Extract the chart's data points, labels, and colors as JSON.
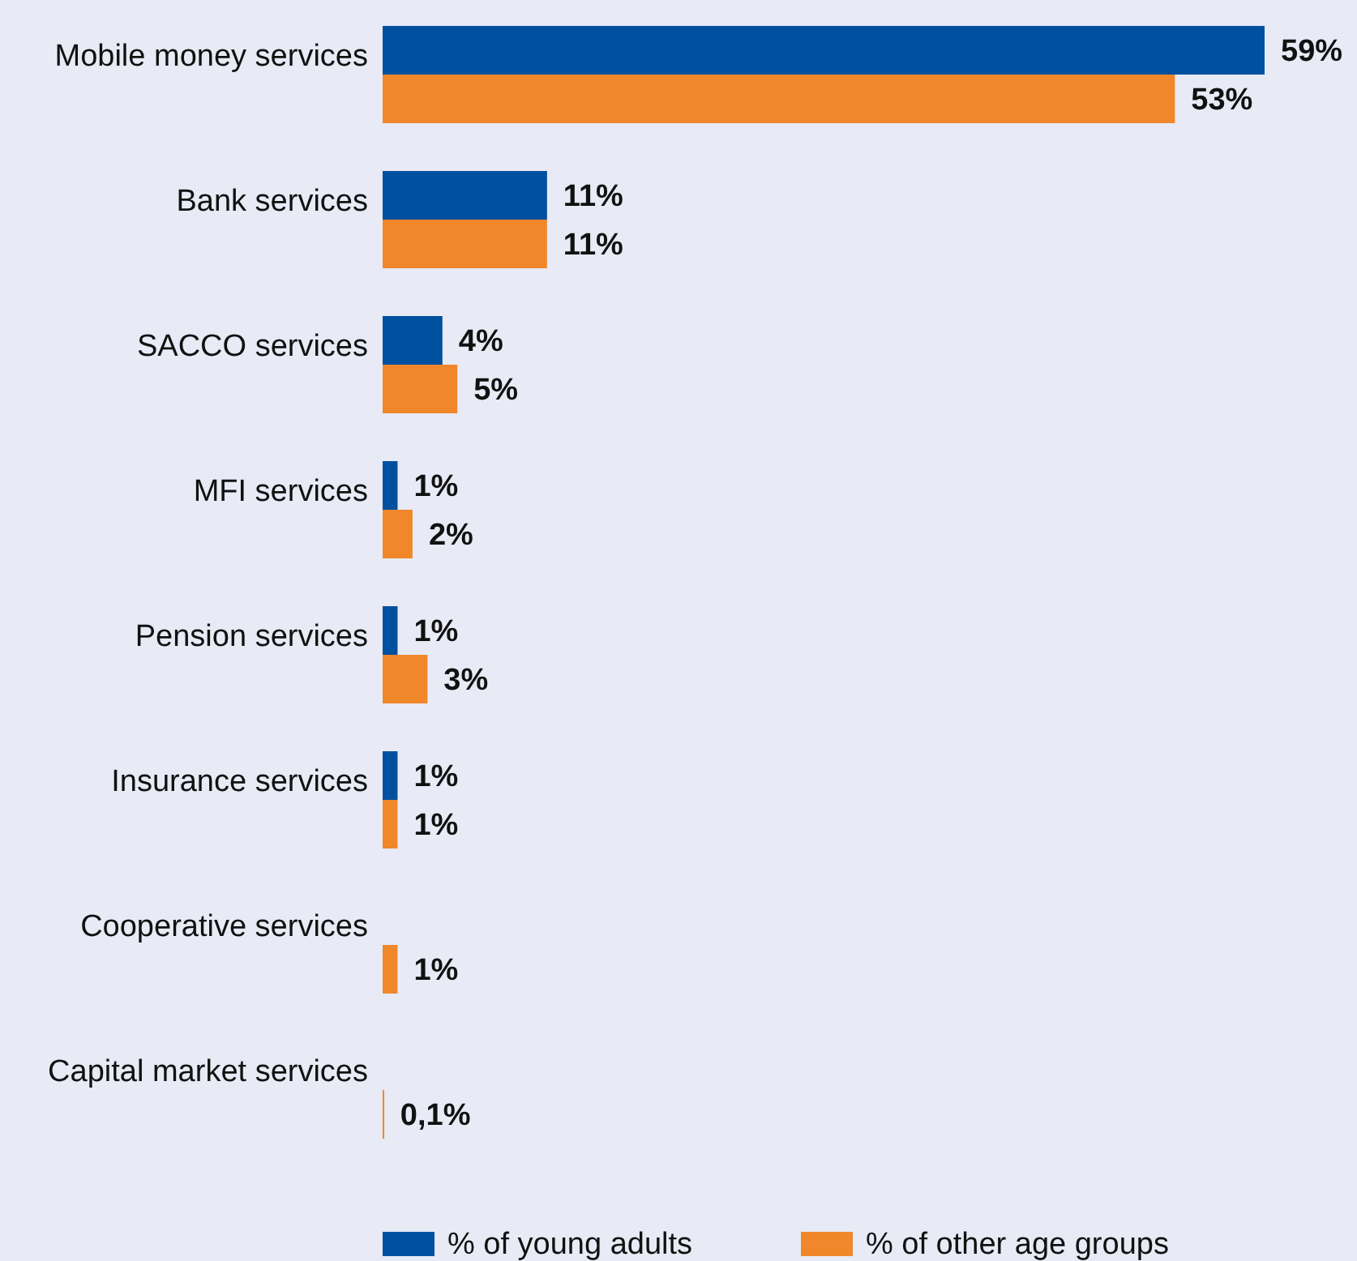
{
  "chart_data": {
    "type": "bar",
    "orientation": "horizontal",
    "categories": [
      "Mobile money services",
      "Bank services",
      "SACCO services",
      "MFI services",
      "Pension services",
      "Insurance services",
      "Cooperative services",
      "Capital market services"
    ],
    "series": [
      {
        "name": "% of young adults",
        "color": "#0050a0",
        "values": [
          59,
          11,
          4,
          1,
          1,
          1,
          null,
          null
        ],
        "value_labels": [
          "59%",
          "11%",
          "4%",
          "1%",
          "1%",
          "1%",
          null,
          null
        ]
      },
      {
        "name": "% of other age groups",
        "color": "#f0872a",
        "values": [
          53,
          11,
          5,
          2,
          3,
          1,
          1,
          0.1
        ],
        "value_labels": [
          "53%",
          "11%",
          "5%",
          "2%",
          "3%",
          "1%",
          "1%",
          "0,1%"
        ]
      }
    ],
    "legend": "bottom",
    "tick_labels": "y"
  }
}
